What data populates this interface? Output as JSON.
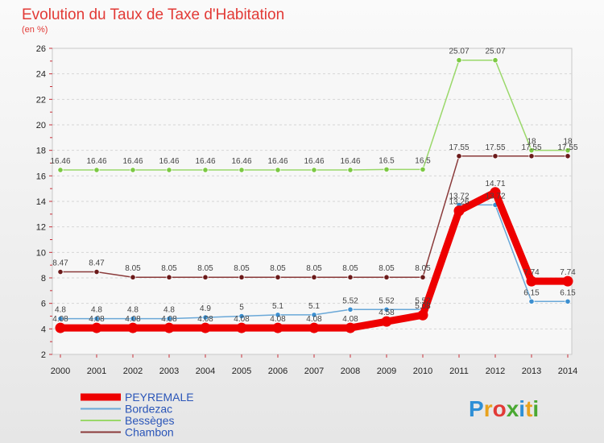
{
  "chart_data": {
    "type": "line",
    "title": "Evolution du Taux de Taxe d'Habitation",
    "subtitle": "(en %)",
    "xlabel": "",
    "ylabel": "",
    "x": [
      "2000",
      "2001",
      "2002",
      "2003",
      "2004",
      "2005",
      "2006",
      "2007",
      "2008",
      "2009",
      "2010",
      "2011",
      "2012",
      "2013",
      "2014"
    ],
    "ylim": [
      2,
      26
    ],
    "yticks": [
      2,
      4,
      6,
      8,
      10,
      12,
      14,
      16,
      18,
      20,
      22,
      24,
      26
    ],
    "grid": "horizontal dashed",
    "legend_position": "bottom-left",
    "series": [
      {
        "name": "PEYREMALE",
        "color": "#ee0000",
        "values": [
          4.08,
          4.08,
          4.08,
          4.08,
          4.08,
          4.08,
          4.08,
          4.08,
          4.08,
          4.58,
          5.08,
          13.26,
          14.71,
          7.74,
          7.74
        ],
        "labels": [
          "4.08",
          "4.08",
          "4.08",
          "4.08",
          "4.08",
          "4.08",
          "4.08",
          "4.08",
          "4.08",
          "4.58",
          "5.08",
          "13.26",
          "14.71",
          "7.74",
          "7.74"
        ]
      },
      {
        "name": "Bordezac",
        "color": "#3c8fd0",
        "values": [
          4.8,
          4.8,
          4.8,
          4.8,
          4.9,
          5,
          5.1,
          5.1,
          5.52,
          5.52,
          5.52,
          13.72,
          13.72,
          6.15,
          6.15
        ],
        "labels": [
          "4.8",
          "4.8",
          "4.8",
          "4.8",
          "4.9",
          "5",
          "5.1",
          "5.1",
          "5.52",
          "5.52",
          "5.52",
          "13.72",
          "13.72",
          "6.15",
          "6.15"
        ]
      },
      {
        "name": "Bessèges",
        "color": "#7cc943",
        "values": [
          16.46,
          16.46,
          16.46,
          16.46,
          16.46,
          16.46,
          16.46,
          16.46,
          16.46,
          16.5,
          16.5,
          25.07,
          25.07,
          18,
          18
        ],
        "labels": [
          "16.46",
          "16.46",
          "16.46",
          "16.46",
          "16.46",
          "16.46",
          "16.46",
          "16.46",
          "16.46",
          "16.5",
          "16.5",
          "25.07",
          "25.07",
          "18",
          "18"
        ]
      },
      {
        "name": "Chambon",
        "color": "#6b1a1a",
        "values": [
          8.47,
          8.47,
          8.05,
          8.05,
          8.05,
          8.05,
          8.05,
          8.05,
          8.05,
          8.05,
          8.05,
          17.55,
          17.55,
          17.55,
          17.55
        ],
        "labels": [
          "8.47",
          "8.47",
          "8.05",
          "8.05",
          "8.05",
          "8.05",
          "8.05",
          "8.05",
          "8.05",
          "8.05",
          "8.05",
          "17.55",
          "17.55",
          "17.55",
          "17.55"
        ]
      }
    ],
    "legend_text_color": "#2a55b8",
    "logo_text": "Proxiti"
  }
}
